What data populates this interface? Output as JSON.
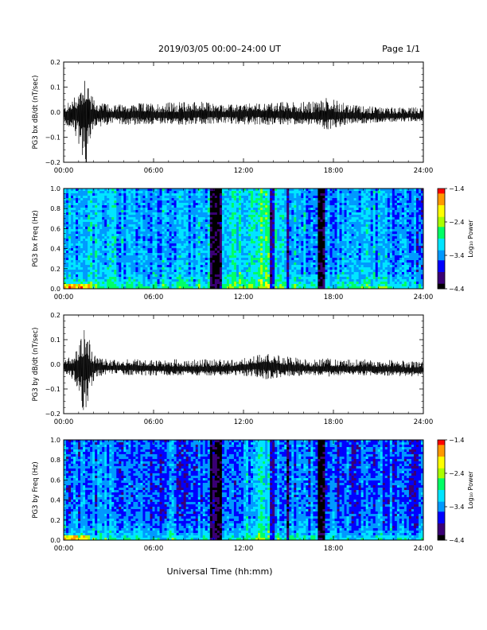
{
  "header": {
    "title": "2019/03/05  00:00–24:00 UT",
    "page": "Page 1/1"
  },
  "footer": {
    "xlabel": "Universal Time (hh:mm)"
  },
  "colors": {
    "trace": "#000000",
    "colormap": [
      "#000000",
      "#3a0075",
      "#0000ff",
      "#0099ff",
      "#00e5ff",
      "#00ff66",
      "#aaff00",
      "#ffff00",
      "#ff9900",
      "#ff0000"
    ]
  },
  "chart_data": [
    {
      "type": "line",
      "ylabel": "PG3 bx dB/dt (nT/sec)",
      "xlim": [
        0,
        24
      ],
      "ylim": [
        -0.2,
        0.2
      ],
      "x_ticks": [
        "00:00",
        "06:00",
        "12:00",
        "18:00",
        "24:00"
      ],
      "y_ticks": [
        "0.2",
        "0.1",
        "0.0",
        "−0.1",
        "−0.2"
      ],
      "envelope": {
        "x": [
          0,
          0.5,
          0.9,
          1.2,
          1.5,
          1.8,
          2.2,
          3,
          5,
          7,
          9,
          11,
          12.5,
          14,
          15.5,
          16.5,
          17.5,
          19,
          21,
          24
        ],
        "max": [
          0.02,
          0.05,
          0.08,
          0.13,
          0.19,
          0.07,
          0.04,
          0.03,
          0.035,
          0.04,
          0.045,
          0.03,
          0.035,
          0.04,
          0.045,
          0.04,
          0.06,
          0.03,
          0.02,
          0.02
        ],
        "min": [
          -0.04,
          -0.08,
          -0.1,
          -0.17,
          -0.21,
          -0.1,
          -0.06,
          -0.05,
          -0.05,
          -0.05,
          -0.05,
          -0.045,
          -0.05,
          -0.05,
          -0.05,
          -0.05,
          -0.07,
          -0.05,
          -0.04,
          -0.035
        ],
        "center": [
          -0.01,
          -0.01,
          -0.01,
          -0.01,
          -0.01,
          -0.01,
          -0.01,
          -0.01,
          -0.01,
          -0.015,
          -0.01,
          -0.01,
          -0.005,
          -0.01,
          -0.015,
          -0.02,
          -0.015,
          -0.015,
          -0.015,
          -0.015
        ]
      }
    },
    {
      "type": "heatmap",
      "ylabel": "PG3 bx Freq (Hz)",
      "colorbar_label": "Log₁₀ Power",
      "xlim": [
        0,
        24
      ],
      "ylim": [
        0,
        1.0
      ],
      "x_ticks": [
        "00:00",
        "06:00",
        "12:00",
        "18:00",
        "24:00"
      ],
      "y_ticks": [
        "1.0",
        "0.8",
        "0.6",
        "0.4",
        "0.2",
        "0.0"
      ],
      "colorbar_ticks": [
        "−1.4",
        "−2.4",
        "−3.4",
        "−4.4"
      ],
      "clim": [
        -4.4,
        -1.4
      ],
      "background_power": [
        [
          0,
          -3.3
        ],
        [
          2,
          -3.2
        ],
        [
          4,
          -3.3
        ],
        [
          6,
          -3.4
        ],
        [
          8,
          -3.3
        ],
        [
          10,
          -3.3
        ],
        [
          12,
          -3.0
        ],
        [
          13.3,
          -2.8
        ],
        [
          14.5,
          -3.1
        ],
        [
          16,
          -3.3
        ],
        [
          18,
          -3.4
        ],
        [
          20,
          -3.3
        ],
        [
          22,
          -3.4
        ],
        [
          24,
          -3.5
        ]
      ],
      "low_freq_enhancement": 0.6,
      "dark_bands": [
        [
          9.8,
          10.5,
          -4.2
        ],
        [
          13.8,
          14.1,
          -3.8
        ],
        [
          14.9,
          15.1,
          -3.8
        ],
        [
          16.9,
          17.4,
          -4.3
        ]
      ]
    },
    {
      "type": "line",
      "ylabel": "PG3 by dB/dt (nT/sec)",
      "xlim": [
        0,
        24
      ],
      "ylim": [
        -0.2,
        0.2
      ],
      "x_ticks": [
        "00:00",
        "06:00",
        "12:00",
        "18:00",
        "24:00"
      ],
      "y_ticks": [
        "0.2",
        "0.1",
        "0.0",
        "−0.1",
        "−0.2"
      ],
      "envelope": {
        "x": [
          0,
          0.5,
          0.9,
          1.2,
          1.5,
          1.8,
          2.2,
          3,
          5,
          7,
          9,
          11,
          12.5,
          13.5,
          15,
          16.5,
          17.5,
          19,
          21,
          24
        ],
        "max": [
          0.02,
          0.03,
          0.06,
          0.13,
          0.2,
          0.06,
          0.03,
          0.02,
          0.02,
          0.02,
          0.02,
          0.02,
          0.03,
          0.045,
          0.03,
          0.02,
          0.025,
          0.02,
          0.02,
          0.01
        ],
        "min": [
          -0.04,
          -0.05,
          -0.1,
          -0.17,
          -0.22,
          -0.1,
          -0.05,
          -0.04,
          -0.045,
          -0.045,
          -0.045,
          -0.045,
          -0.05,
          -0.06,
          -0.05,
          -0.045,
          -0.05,
          -0.045,
          -0.045,
          -0.05
        ],
        "center": [
          -0.01,
          -0.01,
          -0.01,
          -0.01,
          -0.01,
          -0.01,
          -0.01,
          -0.015,
          -0.015,
          -0.02,
          -0.02,
          -0.02,
          -0.01,
          -0.005,
          -0.015,
          -0.02,
          -0.02,
          -0.02,
          -0.02,
          -0.025
        ]
      }
    },
    {
      "type": "heatmap",
      "ylabel": "PG3 by Freq (Hz)",
      "colorbar_label": "Log₁₀ Power",
      "xlim": [
        0,
        24
      ],
      "ylim": [
        0,
        1.0
      ],
      "x_ticks": [
        "00:00",
        "06:00",
        "12:00",
        "18:00",
        "24:00"
      ],
      "y_ticks": [
        "1.0",
        "0.8",
        "0.6",
        "0.4",
        "0.2",
        "0.0"
      ],
      "colorbar_ticks": [
        "−1.4",
        "−2.4",
        "−3.4",
        "−4.4"
      ],
      "clim": [
        -4.4,
        -1.4
      ],
      "background_power": [
        [
          0,
          -3.5
        ],
        [
          2,
          -3.5
        ],
        [
          4,
          -3.5
        ],
        [
          6,
          -3.6
        ],
        [
          8,
          -3.6
        ],
        [
          10,
          -3.6
        ],
        [
          12,
          -3.4
        ],
        [
          13.3,
          -3.2
        ],
        [
          14.5,
          -3.4
        ],
        [
          16,
          -3.6
        ],
        [
          18,
          -3.6
        ],
        [
          20,
          -3.6
        ],
        [
          22,
          -3.6
        ],
        [
          24,
          -3.7
        ]
      ],
      "low_freq_enhancement": 0.7,
      "dark_bands": [
        [
          9.8,
          10.5,
          -4.3
        ],
        [
          13.8,
          14.1,
          -3.9
        ],
        [
          14.9,
          15.1,
          -3.9
        ],
        [
          16.9,
          17.4,
          -4.3
        ]
      ]
    }
  ]
}
